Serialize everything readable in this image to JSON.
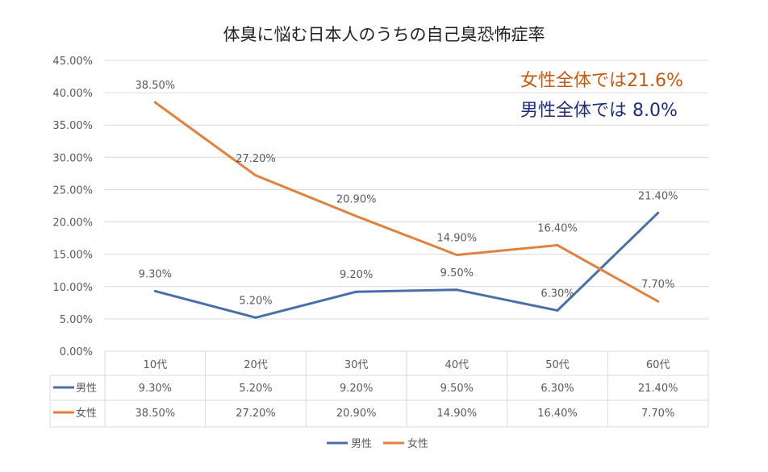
{
  "chart_data": {
    "type": "line",
    "title": "体臭に悩む日本人のうちの自己臭恐怖症率",
    "categories": [
      "10代",
      "20代",
      "30代",
      "40代",
      "50代",
      "60代"
    ],
    "series": [
      {
        "name": "男性",
        "color": "#4a6fa8",
        "values": [
          9.3,
          5.2,
          9.2,
          9.5,
          6.3,
          21.4
        ],
        "labels": [
          "9.30%",
          "5.20%",
          "9.20%",
          "9.50%",
          "6.30%",
          "21.40%"
        ]
      },
      {
        "name": "女性",
        "color": "#e0823d",
        "values": [
          38.5,
          27.2,
          20.9,
          14.9,
          16.4,
          7.7
        ],
        "labels": [
          "38.50%",
          "27.20%",
          "20.90%",
          "14.90%",
          "16.40%",
          "7.70%"
        ]
      }
    ],
    "ylim": [
      0,
      45
    ],
    "yticks": [
      0,
      5,
      10,
      15,
      20,
      25,
      30,
      35,
      40,
      45
    ],
    "ytick_labels": [
      "0.00%",
      "5.00%",
      "10.00%",
      "15.00%",
      "20.00%",
      "25.00%",
      "30.00%",
      "35.00%",
      "40.00%",
      "45.00%"
    ],
    "grid": true,
    "legend_placement": "bottom",
    "data_table": true,
    "annotations": [
      {
        "text": "女性全体では21.6%",
        "color": "#c55a11"
      },
      {
        "text": "男性全体では  8.0%",
        "color": "#1f2d7a"
      }
    ]
  }
}
